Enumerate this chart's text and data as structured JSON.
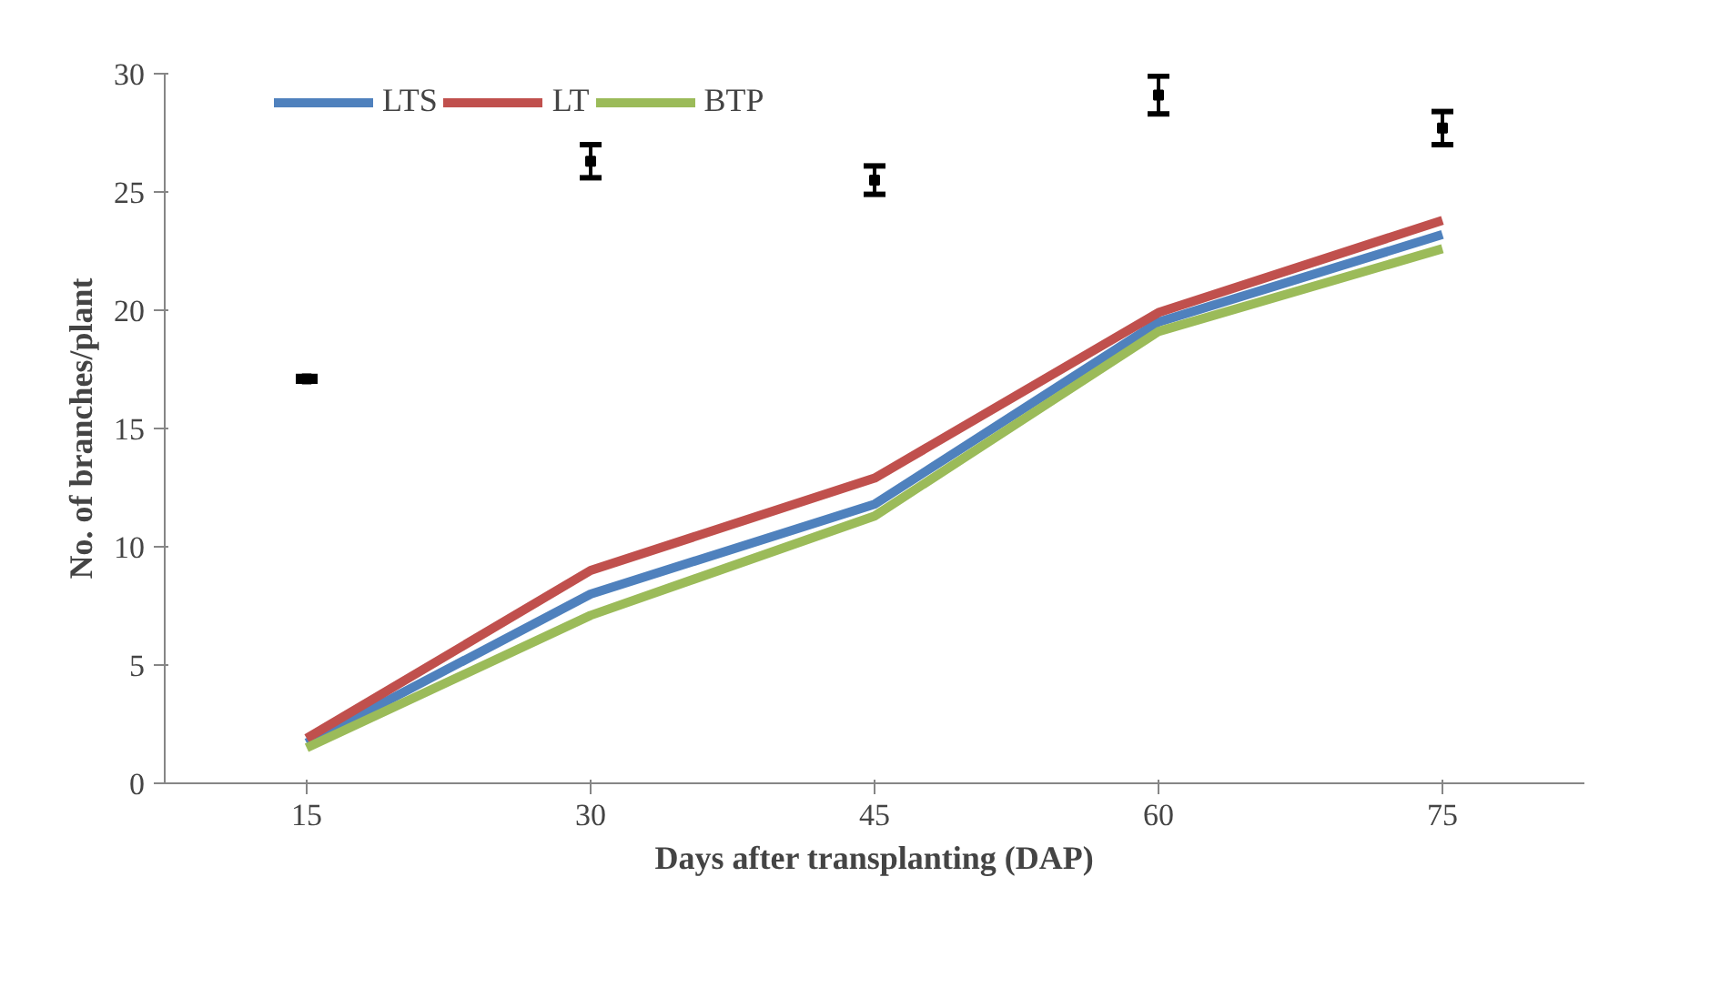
{
  "chart_data": {
    "type": "line",
    "xlabel": "Days after transplanting (DAP)",
    "ylabel": "No. of branches/plant",
    "categories": [
      "15",
      "30",
      "45",
      "60",
      "75"
    ],
    "ylim": [
      0,
      30
    ],
    "yticks": [
      0,
      5,
      10,
      15,
      20,
      25,
      30
    ],
    "grid": false,
    "legend": "top",
    "marker": "none",
    "line_style": "solid",
    "series": [
      {
        "name": "LTS",
        "color": "#4f81bd",
        "values": [
          1.7,
          8.0,
          11.8,
          19.5,
          23.2
        ]
      },
      {
        "name": "LT",
        "color": "#c0504d",
        "values": [
          1.9,
          9.0,
          12.9,
          19.9,
          23.8
        ]
      },
      {
        "name": "BTP",
        "color": "#9bbb59",
        "values": [
          1.5,
          7.1,
          11.3,
          19.1,
          22.6
        ]
      },
      {
        "type": "scatter",
        "color": "#000000",
        "marker": "square",
        "values": [
          17.1,
          26.3,
          25.5,
          29.1,
          27.7
        ],
        "errors": [
          0.1,
          0.7,
          0.6,
          0.8,
          0.7
        ]
      }
    ]
  }
}
